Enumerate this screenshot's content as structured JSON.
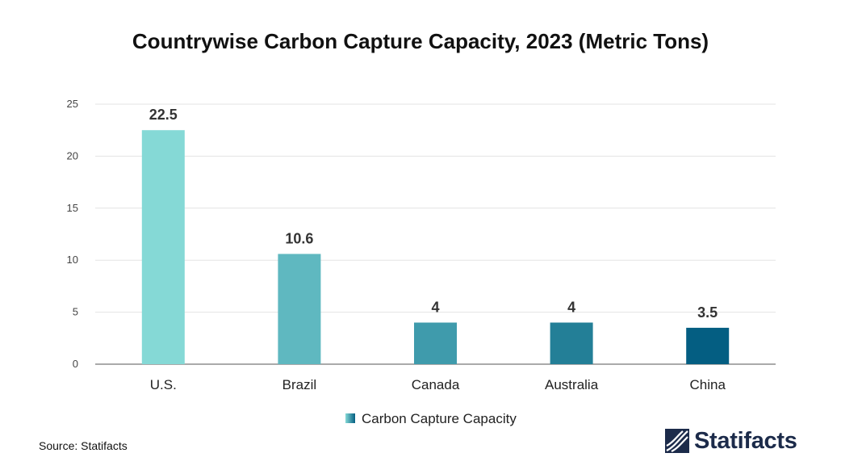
{
  "chart_data": {
    "type": "bar",
    "title": "Countrywise Carbon Capture Capacity, 2023 (Metric Tons)",
    "categories": [
      "U.S.",
      "Brazil",
      "Canada",
      "Australia",
      "China"
    ],
    "series": [
      {
        "name": "Carbon Capture Capacity",
        "values": [
          22.5,
          10.6,
          4,
          4,
          3.5
        ]
      }
    ],
    "data_labels": [
      "22.5",
      "10.6",
      "4",
      "4",
      "3.5"
    ],
    "bar_colors": [
      "#85d9d6",
      "#5fb8c0",
      "#3f9bac",
      "#237f97",
      "#045e82"
    ],
    "yticks": [
      0,
      5,
      10,
      15,
      20,
      25
    ],
    "ylim": [
      0,
      25
    ],
    "xlabel": "",
    "ylabel": "",
    "grid": true,
    "legend_position": "bottom-center"
  },
  "source": "Source: Statifacts",
  "brand": {
    "name": "Statifacts",
    "color": "#1c2b4a"
  }
}
